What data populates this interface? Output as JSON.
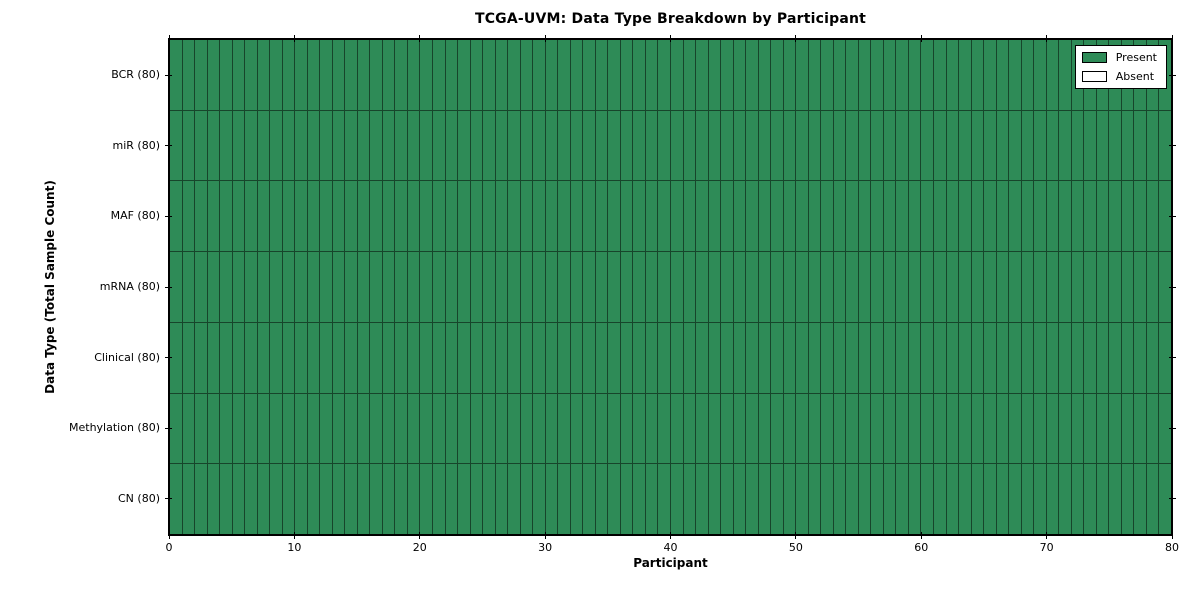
{
  "figure": {
    "title": "TCGA-UVM: Data Type Breakdown by Participant",
    "xlabel": "Participant",
    "ylabel": "Data Type (Total Sample Count)"
  },
  "chart_data": {
    "type": "heatmap",
    "title": "TCGA-UVM: Data Type Breakdown by Participant",
    "xlabel": "Participant",
    "ylabel": "Data Type (Total Sample Count)",
    "x_range": [
      0,
      80
    ],
    "x_ticks": [
      0,
      10,
      20,
      30,
      40,
      50,
      60,
      70,
      80
    ],
    "n_participants": 80,
    "rows": [
      {
        "label": "BCR (80)",
        "data_type": "BCR",
        "total_sample_count": 80,
        "present_count": 80,
        "absent_count": 0
      },
      {
        "label": "miR (80)",
        "data_type": "miR",
        "total_sample_count": 80,
        "present_count": 80,
        "absent_count": 0
      },
      {
        "label": "MAF (80)",
        "data_type": "MAF",
        "total_sample_count": 80,
        "present_count": 80,
        "absent_count": 0
      },
      {
        "label": "mRNA (80)",
        "data_type": "mRNA",
        "total_sample_count": 80,
        "present_count": 80,
        "absent_count": 0
      },
      {
        "label": "Clinical (80)",
        "data_type": "Clinical",
        "total_sample_count": 80,
        "present_count": 80,
        "absent_count": 0
      },
      {
        "label": "Methylation (80)",
        "data_type": "Methylation",
        "total_sample_count": 80,
        "present_count": 80,
        "absent_count": 0
      },
      {
        "label": "CN (80)",
        "data_type": "CN",
        "total_sample_count": 80,
        "present_count": 80,
        "absent_count": 0
      }
    ],
    "legend": {
      "position": "upper right",
      "entries": [
        {
          "label": "Present",
          "color": "#2e8b57"
        },
        {
          "label": "Absent",
          "color": "#ffffff"
        }
      ]
    },
    "colors": {
      "present": "#2e8b57",
      "absent": "#ffffff",
      "cell_edge": "#17452b",
      "spine": "#000000"
    },
    "grid": false
  }
}
